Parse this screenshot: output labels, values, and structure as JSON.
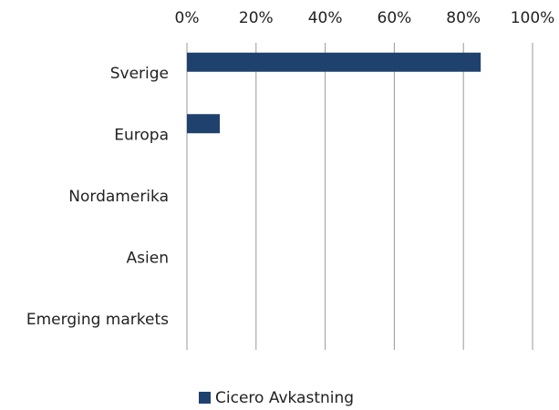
{
  "chart_data": {
    "type": "bar",
    "orientation": "horizontal",
    "categories": [
      "Sverige",
      "Europa",
      "Nordamerika",
      "Asien",
      "Emerging markets"
    ],
    "series": [
      {
        "name": "Cicero Avkastning",
        "color": "#1f416d",
        "values": [
          85,
          9.5,
          0,
          0,
          0
        ]
      }
    ],
    "xlim": [
      0,
      100
    ],
    "xticks": [
      {
        "value": 0,
        "label": "0%"
      },
      {
        "value": 20,
        "label": "20%"
      },
      {
        "value": 40,
        "label": "40%"
      },
      {
        "value": 60,
        "label": "60%"
      },
      {
        "value": 80,
        "label": "80%"
      },
      {
        "value": 100,
        "label": "100%"
      }
    ],
    "grid": true,
    "legend": "bottom"
  }
}
